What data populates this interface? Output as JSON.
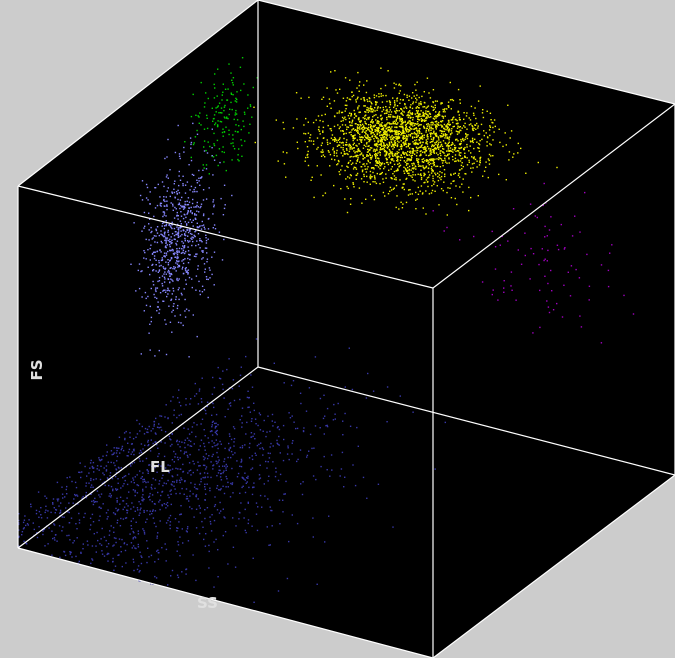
{
  "chart_data": {
    "type": "scatter",
    "projection": "3d",
    "title": "",
    "axes": {
      "x_label": "SS",
      "y_label": "FS",
      "z_label": "FL"
    },
    "background": "#000000",
    "frame_color": "#ffffff",
    "outer_background": "#cccccc",
    "grid": false,
    "legend": "none",
    "series": [
      {
        "color": "#f0f000",
        "points_approx": 2200,
        "centroid": {
          "ss": 0.42,
          "fs": 0.82,
          "fl": 0.88
        }
      },
      {
        "color": "#a000c0",
        "points_approx": 90,
        "centroid": {
          "ss": 0.78,
          "fs": 0.62,
          "fl": 0.82
        }
      },
      {
        "color": "#00d000",
        "points_approx": 160,
        "centroid": {
          "ss": 0.08,
          "fs": 0.86,
          "fl": 0.72
        }
      },
      {
        "color": "#8888ff",
        "points_approx": 700,
        "centroid": {
          "ss": 0.05,
          "fs": 0.58,
          "fl": 0.58
        }
      },
      {
        "color": "#3838a8",
        "points_approx": 1300,
        "centroid": {
          "ss": 0.15,
          "fs": 0.05,
          "fl": 0.35
        }
      }
    ]
  }
}
